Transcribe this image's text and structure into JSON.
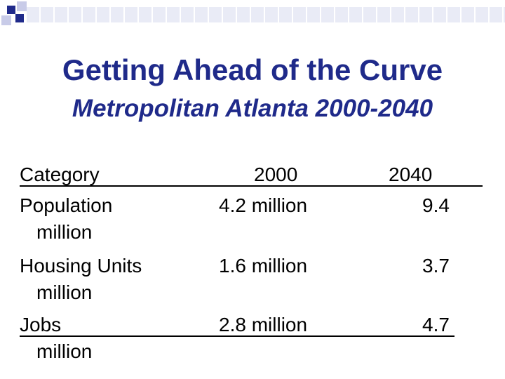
{
  "title": "Getting Ahead of the Curve",
  "subtitle": "Metropolitan Atlanta 2000-2040",
  "table": {
    "headers": {
      "category": "Category",
      "y2000": "2000",
      "y2040": "2040"
    },
    "rows": [
      {
        "category": "Population",
        "unit": "million",
        "y2000": "4.2 million",
        "y2040": "9.4"
      },
      {
        "category": "Housing Units",
        "unit": "million",
        "y2000": "1.6 million",
        "y2040": "3.7"
      },
      {
        "category": "Jobs",
        "unit": "million",
        "y2000": "2.8 million",
        "y2040": "4.7"
      }
    ]
  },
  "colors": {
    "title": "#1f2a8a",
    "accent": "#1f2a8a",
    "accent_light": "#c8cbe8",
    "band": "#e9ebf6"
  }
}
